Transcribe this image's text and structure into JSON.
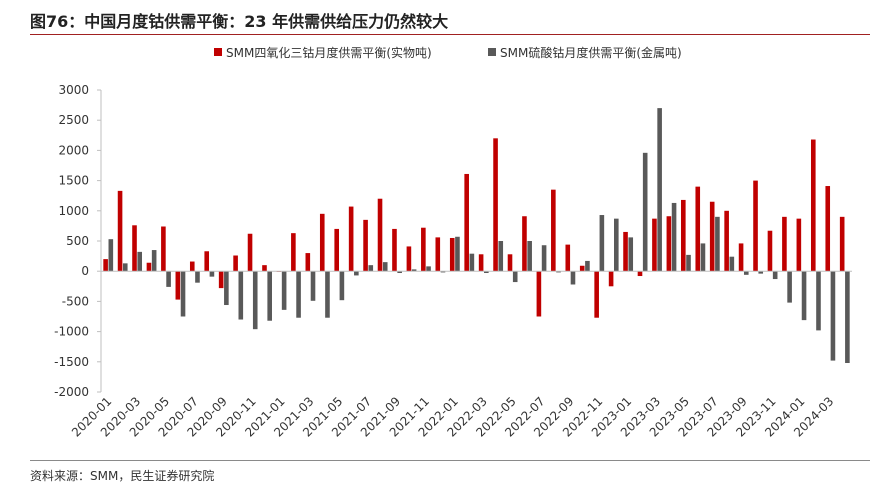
{
  "title": "图76：中国月度钴供需平衡：23 年供需供给压力仍然较大",
  "source": "资料来源：SMM，民生证券研究院",
  "colors": {
    "series1": "#c00000",
    "series2": "#595959",
    "axis": "#bfbfbf"
  },
  "chart_data": {
    "type": "bar",
    "title": "中国月度钴供需平衡",
    "xlabel": "",
    "ylabel": "",
    "ylim": [
      -2000,
      3000
    ],
    "yticks": [
      -2000,
      -1500,
      -1000,
      -500,
      0,
      500,
      1000,
      1500,
      2000,
      2500,
      3000
    ],
    "legend": "top",
    "categories": [
      "2020-01",
      "2020-02",
      "2020-03",
      "2020-04",
      "2020-05",
      "2020-06",
      "2020-07",
      "2020-08",
      "2020-09",
      "2020-10",
      "2020-11",
      "2020-12",
      "2021-01",
      "2021-02",
      "2021-03",
      "2021-04",
      "2021-05",
      "2021-06",
      "2021-07",
      "2021-08",
      "2021-09",
      "2021-10",
      "2021-11",
      "2021-12",
      "2022-01",
      "2022-02",
      "2022-03",
      "2022-04",
      "2022-05",
      "2022-06",
      "2022-07",
      "2022-08",
      "2022-09",
      "2022-10",
      "2022-11",
      "2022-12",
      "2023-01",
      "2023-02",
      "2023-03",
      "2023-04",
      "2023-05",
      "2023-06",
      "2023-07",
      "2023-08",
      "2023-09",
      "2023-10",
      "2023-11",
      "2023-12",
      "2024-01",
      "2024-02",
      "2024-03",
      "2024-04"
    ],
    "tick_labels": [
      "2020-01",
      "2020-03",
      "2020-05",
      "2020-07",
      "2020-09",
      "2020-11",
      "2021-01",
      "2021-03",
      "2021-05",
      "2021-07",
      "2021-09",
      "2021-11",
      "2022-01",
      "2022-03",
      "2022-05",
      "2022-07",
      "2022-09",
      "2022-11",
      "2023-01",
      "2023-03",
      "2023-05",
      "2023-07",
      "2023-09",
      "2023-11",
      "2024-01",
      "2024-03"
    ],
    "series": [
      {
        "name": "SMM四氧化三钴月度供需平衡(实物吨)",
        "values": [
          200,
          1330,
          760,
          140,
          740,
          -470,
          160,
          330,
          -280,
          260,
          620,
          100,
          -10,
          630,
          300,
          950,
          700,
          1070,
          850,
          1200,
          700,
          410,
          720,
          560,
          550,
          1610,
          280,
          2200,
          280,
          910,
          -750,
          1350,
          440,
          90,
          -770,
          -250,
          650,
          -80,
          870,
          910,
          1180,
          1400,
          1150,
          1000,
          460,
          1500,
          670,
          900,
          870,
          2180,
          1410,
          900
        ]
      },
      {
        "name": "SMM硫酸钴月度供需平衡(金属吨)",
        "values": [
          530,
          130,
          320,
          350,
          -260,
          -750,
          -190,
          -90,
          -560,
          -800,
          -960,
          -820,
          -640,
          -770,
          -490,
          -770,
          -480,
          -70,
          100,
          150,
          -30,
          30,
          80,
          -20,
          570,
          290,
          -30,
          500,
          -180,
          500,
          430,
          -20,
          -220,
          170,
          930,
          870,
          560,
          1960,
          2700,
          1130,
          270,
          460,
          900,
          240,
          -60,
          -40,
          -130,
          -520,
          -810,
          -980,
          -1480,
          -1520
        ]
      }
    ]
  }
}
